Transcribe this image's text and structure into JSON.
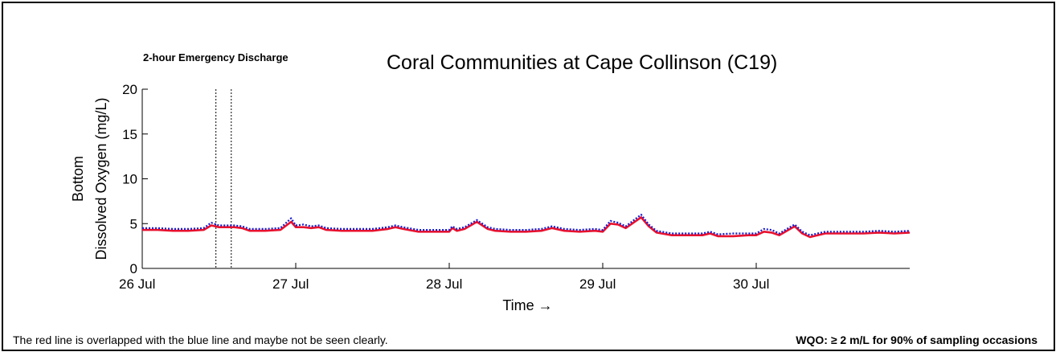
{
  "chart_data": {
    "type": "line",
    "title": "Coral Communities at Cape Collinson (C19)",
    "xlabel": "Time →",
    "ylabel_line1": "Bottom",
    "ylabel_line2": "Dissolved Oxygen (mg/L)",
    "ylim": [
      0,
      20
    ],
    "yticks": [
      0,
      5,
      10,
      15,
      20
    ],
    "xlim_days": [
      26,
      31
    ],
    "xtick_labels": [
      "26 Jul",
      "27 Jul",
      "28 Jul",
      "29 Jul",
      "30 Jul"
    ],
    "grid": false,
    "event": {
      "label": "2-hour Emergency Discharge",
      "start_day": 26.48,
      "end_day": 26.58
    },
    "series": [
      {
        "color": "#e8112d",
        "values": [
          [
            26.0,
            4.3
          ],
          [
            26.1,
            4.3
          ],
          [
            26.2,
            4.2
          ],
          [
            26.3,
            4.2
          ],
          [
            26.4,
            4.3
          ],
          [
            26.45,
            4.8
          ],
          [
            26.5,
            4.6
          ],
          [
            26.6,
            4.6
          ],
          [
            26.65,
            4.5
          ],
          [
            26.7,
            4.2
          ],
          [
            26.8,
            4.2
          ],
          [
            26.9,
            4.3
          ],
          [
            26.97,
            5.2
          ],
          [
            27.0,
            4.6
          ],
          [
            27.05,
            4.6
          ],
          [
            27.1,
            4.5
          ],
          [
            27.15,
            4.6
          ],
          [
            27.2,
            4.3
          ],
          [
            27.3,
            4.2
          ],
          [
            27.4,
            4.2
          ],
          [
            27.5,
            4.2
          ],
          [
            27.6,
            4.4
          ],
          [
            27.65,
            4.6
          ],
          [
            27.7,
            4.4
          ],
          [
            27.8,
            4.1
          ],
          [
            27.9,
            4.1
          ],
          [
            28.0,
            4.1
          ],
          [
            28.02,
            4.5
          ],
          [
            28.05,
            4.2
          ],
          [
            28.1,
            4.4
          ],
          [
            28.18,
            5.2
          ],
          [
            28.25,
            4.4
          ],
          [
            28.3,
            4.2
          ],
          [
            28.4,
            4.1
          ],
          [
            28.5,
            4.1
          ],
          [
            28.6,
            4.2
          ],
          [
            28.67,
            4.5
          ],
          [
            28.75,
            4.2
          ],
          [
            28.85,
            4.1
          ],
          [
            28.95,
            4.2
          ],
          [
            29.0,
            4.1
          ],
          [
            29.05,
            5.0
          ],
          [
            29.1,
            4.9
          ],
          [
            29.15,
            4.5
          ],
          [
            29.25,
            5.7
          ],
          [
            29.3,
            4.7
          ],
          [
            29.35,
            4.0
          ],
          [
            29.45,
            3.7
          ],
          [
            29.55,
            3.7
          ],
          [
            29.65,
            3.7
          ],
          [
            29.7,
            3.9
          ],
          [
            29.75,
            3.6
          ],
          [
            29.85,
            3.6
          ],
          [
            29.95,
            3.7
          ],
          [
            30.0,
            3.7
          ],
          [
            30.05,
            4.1
          ],
          [
            30.1,
            4.0
          ],
          [
            30.15,
            3.7
          ],
          [
            30.25,
            4.7
          ],
          [
            30.3,
            3.9
          ],
          [
            30.35,
            3.5
          ],
          [
            30.45,
            3.9
          ],
          [
            30.6,
            3.9
          ],
          [
            30.7,
            3.9
          ],
          [
            30.8,
            4.0
          ],
          [
            30.9,
            3.9
          ],
          [
            31.0,
            4.0
          ]
        ]
      },
      {
        "color": "#1a1acc",
        "values": [
          [
            26.0,
            4.5
          ],
          [
            26.1,
            4.5
          ],
          [
            26.2,
            4.4
          ],
          [
            26.3,
            4.4
          ],
          [
            26.4,
            4.5
          ],
          [
            26.45,
            5.1
          ],
          [
            26.5,
            4.8
          ],
          [
            26.6,
            4.8
          ],
          [
            26.65,
            4.7
          ],
          [
            26.7,
            4.4
          ],
          [
            26.8,
            4.4
          ],
          [
            26.9,
            4.5
          ],
          [
            26.97,
            5.6
          ],
          [
            27.0,
            4.8
          ],
          [
            27.05,
            4.9
          ],
          [
            27.1,
            4.7
          ],
          [
            27.15,
            4.8
          ],
          [
            27.2,
            4.5
          ],
          [
            27.3,
            4.4
          ],
          [
            27.4,
            4.4
          ],
          [
            27.5,
            4.4
          ],
          [
            27.6,
            4.6
          ],
          [
            27.65,
            4.8
          ],
          [
            27.7,
            4.6
          ],
          [
            27.8,
            4.3
          ],
          [
            27.9,
            4.3
          ],
          [
            28.0,
            4.3
          ],
          [
            28.02,
            4.7
          ],
          [
            28.05,
            4.4
          ],
          [
            28.1,
            4.6
          ],
          [
            28.18,
            5.4
          ],
          [
            28.25,
            4.6
          ],
          [
            28.3,
            4.4
          ],
          [
            28.4,
            4.3
          ],
          [
            28.5,
            4.3
          ],
          [
            28.6,
            4.4
          ],
          [
            28.67,
            4.7
          ],
          [
            28.75,
            4.4
          ],
          [
            28.85,
            4.3
          ],
          [
            28.95,
            4.4
          ],
          [
            29.0,
            4.3
          ],
          [
            29.05,
            5.3
          ],
          [
            29.1,
            5.1
          ],
          [
            29.15,
            4.7
          ],
          [
            29.25,
            6.0
          ],
          [
            29.3,
            4.9
          ],
          [
            29.35,
            4.2
          ],
          [
            29.45,
            3.9
          ],
          [
            29.55,
            3.9
          ],
          [
            29.65,
            3.9
          ],
          [
            29.7,
            4.1
          ],
          [
            29.75,
            3.8
          ],
          [
            29.85,
            3.9
          ],
          [
            29.95,
            3.9
          ],
          [
            30.0,
            3.9
          ],
          [
            30.05,
            4.4
          ],
          [
            30.1,
            4.3
          ],
          [
            30.15,
            3.9
          ],
          [
            30.25,
            4.9
          ],
          [
            30.3,
            4.1
          ],
          [
            30.35,
            3.7
          ],
          [
            30.45,
            4.1
          ],
          [
            30.6,
            4.1
          ],
          [
            30.7,
            4.1
          ],
          [
            30.8,
            4.2
          ],
          [
            30.9,
            4.1
          ],
          [
            31.0,
            4.2
          ]
        ]
      }
    ]
  },
  "notes": {
    "left": "The red line is overlapped with the blue line and maybe not be seen clearly.",
    "right": "WQO: ≥ 2 m/L for 90% of sampling occasions"
  }
}
